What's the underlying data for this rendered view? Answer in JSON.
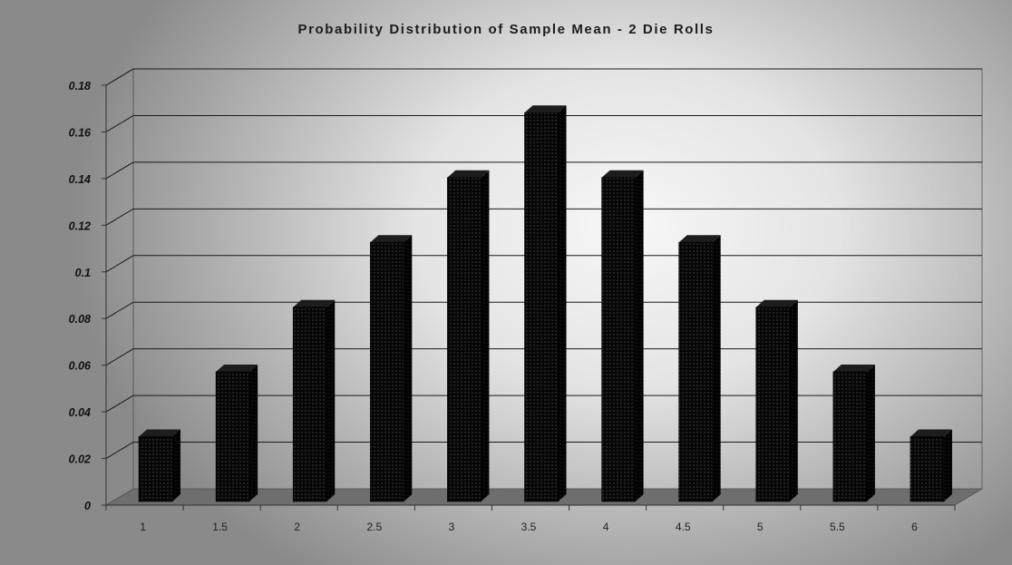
{
  "chart_data": {
    "type": "bar",
    "title": "Probability Distribution of Sample Mean - 2 Die Rolls",
    "xlabel": "",
    "ylabel": "",
    "categories": [
      "1",
      "1.5",
      "2",
      "2.5",
      "3",
      "3.5",
      "4",
      "4.5",
      "5",
      "5.5",
      "6"
    ],
    "values": [
      0.0278,
      0.0556,
      0.0833,
      0.1111,
      0.1389,
      0.1667,
      0.1389,
      0.1111,
      0.0833,
      0.0556,
      0.0278
    ],
    "ylim": [
      0,
      0.18
    ],
    "yticks": [
      "0",
      "0.02",
      "0.04",
      "0.06",
      "0.08",
      "0.1",
      "0.12",
      "0.14",
      "0.16",
      "0.18"
    ],
    "grid": true,
    "legend": "none",
    "style": "3d-columns",
    "bar_color": "#050505",
    "floor_color": "#6e6e6e"
  }
}
